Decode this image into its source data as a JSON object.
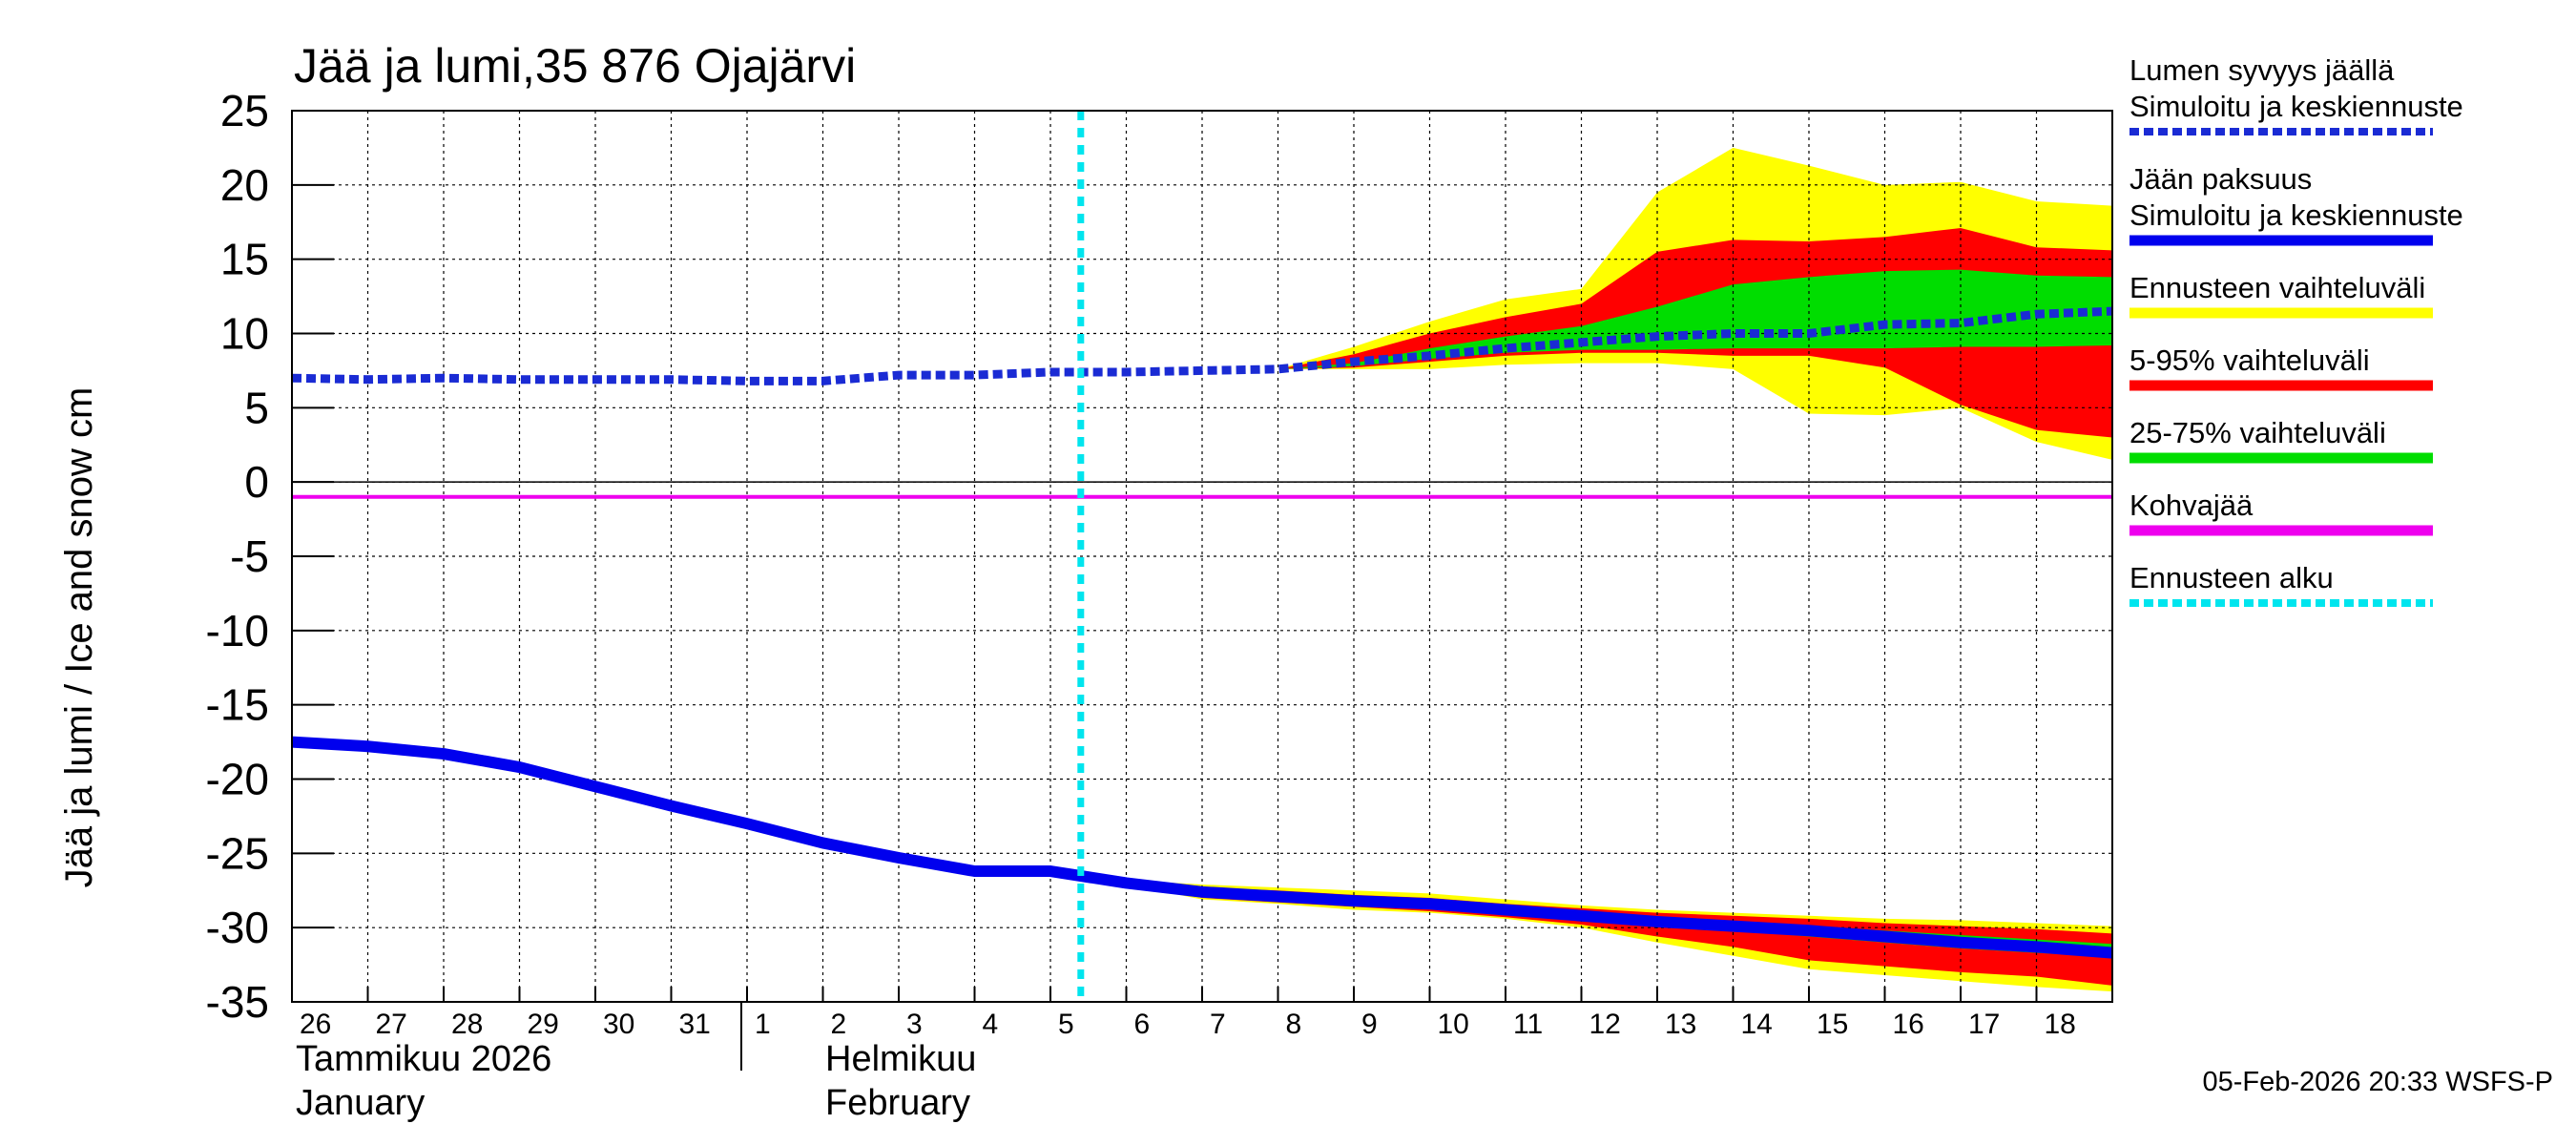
{
  "chart_data": {
    "type": "area",
    "title": "Jää ja lumi,35 876 Ojajärvi",
    "ylabel": "Jää ja lumi / Ice and snow    cm",
    "ylim": [
      -35,
      25
    ],
    "yticks": [
      "25",
      "20",
      "15",
      "10",
      "5",
      "0",
      "-5",
      "-10",
      "-15",
      "-20",
      "-25",
      "-30",
      "-35"
    ],
    "x_day_labels": [
      "26",
      "27",
      "28",
      "29",
      "30",
      "31",
      "1",
      "2",
      "3",
      "4",
      "5",
      "6",
      "7",
      "8",
      "9",
      "10",
      "11",
      "12",
      "13",
      "14",
      "15",
      "16",
      "17",
      "18"
    ],
    "months": [
      {
        "fi": "Tammikuu  2026",
        "en": "January"
      },
      {
        "fi": "Helmikuu",
        "en": "February"
      }
    ],
    "forecast_start_day": 10.4,
    "snow_on_ice": [
      7.0,
      6.9,
      7.0,
      6.9,
      6.9,
      6.9,
      6.8,
      6.8,
      7.2,
      7.2,
      7.4,
      7.4,
      7.5,
      7.6,
      8.1,
      8.5,
      9.0,
      9.4,
      9.8,
      10.0,
      10.0,
      10.6,
      10.7,
      11.3,
      11.5
    ],
    "ice_thickness": [
      -17.5,
      -17.8,
      -18.3,
      -19.2,
      -20.5,
      -21.8,
      -23.0,
      -24.3,
      -25.3,
      -26.2,
      -26.2,
      -27.0,
      -27.6,
      -27.9,
      -28.2,
      -28.4,
      -28.8,
      -29.2,
      -29.6,
      -29.9,
      -30.2,
      -30.6,
      -31.0,
      -31.3,
      -31.7
    ],
    "snow_forecast_bands": {
      "x_days": [
        13,
        14,
        15,
        16,
        17,
        18,
        19,
        20,
        21,
        22,
        23,
        24
      ],
      "p0_100": [
        [
          7.6,
          7.6
        ],
        [
          7.6,
          9.1
        ],
        [
          7.6,
          10.8
        ],
        [
          7.9,
          12.3
        ],
        [
          8.0,
          13.0
        ],
        [
          8.0,
          19.5
        ],
        [
          7.6,
          22.5
        ],
        [
          4.6,
          21.3
        ],
        [
          4.5,
          20.0
        ],
        [
          5.0,
          20.2
        ],
        [
          2.7,
          18.9
        ],
        [
          1.5,
          18.6
        ]
      ],
      "p5_95": [
        [
          7.6,
          7.6
        ],
        [
          7.7,
          8.6
        ],
        [
          8.1,
          10.0
        ],
        [
          8.5,
          11.1
        ],
        [
          8.7,
          12.0
        ],
        [
          8.7,
          15.5
        ],
        [
          8.5,
          16.3
        ],
        [
          8.5,
          16.2
        ],
        [
          7.7,
          16.5
        ],
        [
          5.2,
          17.1
        ],
        [
          3.5,
          15.8
        ],
        [
          3.0,
          15.6
        ]
      ],
      "p25_75": [
        [
          7.6,
          7.6
        ],
        [
          7.8,
          8.0
        ],
        [
          8.3,
          9.0
        ],
        [
          8.7,
          9.8
        ],
        [
          8.9,
          10.5
        ],
        [
          8.9,
          11.8
        ],
        [
          9.0,
          13.3
        ],
        [
          9.0,
          13.8
        ],
        [
          9.0,
          14.2
        ],
        [
          9.1,
          14.3
        ],
        [
          9.1,
          13.9
        ],
        [
          9.2,
          13.8
        ]
      ]
    },
    "ice_forecast_bands": {
      "x_days": [
        10.4,
        11,
        12,
        13,
        14,
        15,
        16,
        17,
        18,
        19,
        20,
        21,
        22,
        23,
        24
      ],
      "p0_100": [
        [
          -26.2,
          -26.2
        ],
        [
          -27.1,
          -26.8
        ],
        [
          -28.1,
          -27.1
        ],
        [
          -28.4,
          -27.3
        ],
        [
          -28.8,
          -27.5
        ],
        [
          -29.0,
          -27.7
        ],
        [
          -29.4,
          -28.1
        ],
        [
          -30.0,
          -28.5
        ],
        [
          -31.0,
          -28.8
        ],
        [
          -31.9,
          -29.0
        ],
        [
          -32.8,
          -29.2
        ],
        [
          -33.2,
          -29.4
        ],
        [
          -33.6,
          -29.5
        ],
        [
          -34.0,
          -29.7
        ],
        [
          -34.3,
          -29.9
        ]
      ],
      "p5_95": [
        [
          -26.2,
          -26.2
        ],
        [
          -27.0,
          -26.9
        ],
        [
          -28.0,
          -27.3
        ],
        [
          -28.3,
          -27.5
        ],
        [
          -28.6,
          -27.8
        ],
        [
          -28.9,
          -28.0
        ],
        [
          -29.3,
          -28.4
        ],
        [
          -29.8,
          -28.7
        ],
        [
          -30.6,
          -29.0
        ],
        [
          -31.3,
          -29.2
        ],
        [
          -32.2,
          -29.4
        ],
        [
          -32.6,
          -29.7
        ],
        [
          -33.0,
          -29.9
        ],
        [
          -33.3,
          -30.1
        ],
        [
          -33.9,
          -30.4
        ]
      ],
      "p25_75": [
        [
          -26.2,
          -26.2
        ],
        [
          -26.9,
          -26.9
        ],
        [
          -27.6,
          -27.5
        ],
        [
          -27.9,
          -27.8
        ],
        [
          -28.3,
          -28.1
        ],
        [
          -28.6,
          -28.3
        ],
        [
          -29.0,
          -28.7
        ],
        [
          -29.4,
          -29.0
        ],
        [
          -29.8,
          -29.3
        ],
        [
          -30.2,
          -29.6
        ],
        [
          -30.6,
          -29.9
        ],
        [
          -31.0,
          -30.2
        ],
        [
          -31.4,
          -30.5
        ],
        [
          -31.7,
          -30.8
        ],
        [
          -32.0,
          -31.1
        ]
      ]
    },
    "kohvajaa": -1.0,
    "legend": [
      {
        "lines": [
          "Lumen syvyys jäällä",
          "Simuloitu ja keskiennuste"
        ],
        "color": "#1a2bd4",
        "style": "dotted"
      },
      {
        "lines": [
          "Jään paksuus",
          "Simuloitu ja keskiennuste"
        ],
        "color": "#0000ee",
        "style": "solid"
      },
      {
        "lines": [
          "Ennusteen vaihteluväli"
        ],
        "color": "#ffff00",
        "style": "solid"
      },
      {
        "lines": [
          "5-95% vaihteluväli"
        ],
        "color": "#ff0000",
        "style": "solid"
      },
      {
        "lines": [
          "25-75% vaihteluväli"
        ],
        "color": "#00dd00",
        "style": "solid"
      },
      {
        "lines": [
          "Kohvajää"
        ],
        "color": "#ee00ee",
        "style": "solid"
      },
      {
        "lines": [
          "Ennusteen alku"
        ],
        "color": "#00e5ee",
        "style": "dotted"
      }
    ],
    "footer": "05-Feb-2026 20:33 WSFS-P"
  }
}
